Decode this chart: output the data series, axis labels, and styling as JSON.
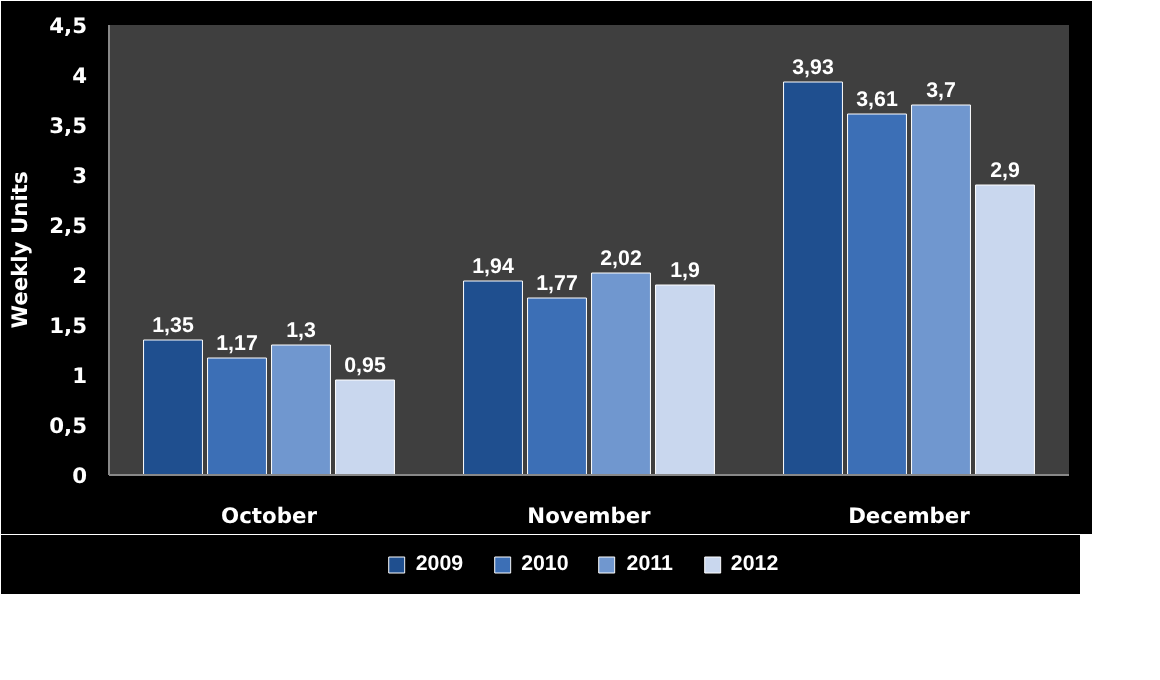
{
  "chart_data": {
    "type": "bar",
    "ylabel": "Weekly Units",
    "categories": [
      "October",
      "November",
      "December"
    ],
    "series": [
      {
        "name": "2009",
        "color": "#1f4f8f",
        "values": [
          1.35,
          1.94,
          3.93
        ],
        "value_labels": [
          "1,35",
          "1,94",
          "3,93"
        ]
      },
      {
        "name": "2010",
        "color": "#3c6fb6",
        "values": [
          1.17,
          1.77,
          3.61
        ],
        "value_labels": [
          "1,17",
          "1,77",
          "3,61"
        ]
      },
      {
        "name": "2011",
        "color": "#7097cf",
        "values": [
          1.3,
          2.02,
          3.7
        ],
        "value_labels": [
          "1,3",
          "2,02",
          "3,7"
        ]
      },
      {
        "name": "2012",
        "color": "#c9d7ee",
        "values": [
          0.95,
          1.9,
          2.9
        ],
        "value_labels": [
          "0,95",
          "1,9",
          "2,9"
        ]
      }
    ],
    "ylim": [
      0,
      4.5
    ],
    "yticks": [
      0,
      {
        "value": 0.5,
        "label": "0,5"
      },
      1,
      {
        "value": 1.5,
        "label": "1,5"
      },
      2,
      {
        "value": 2.5,
        "label": "2,5"
      },
      3,
      {
        "value": 3.5,
        "label": "3,5"
      },
      4,
      {
        "value": 4.5,
        "label": "4,5"
      }
    ],
    "grid": false,
    "legend": "bottom"
  }
}
